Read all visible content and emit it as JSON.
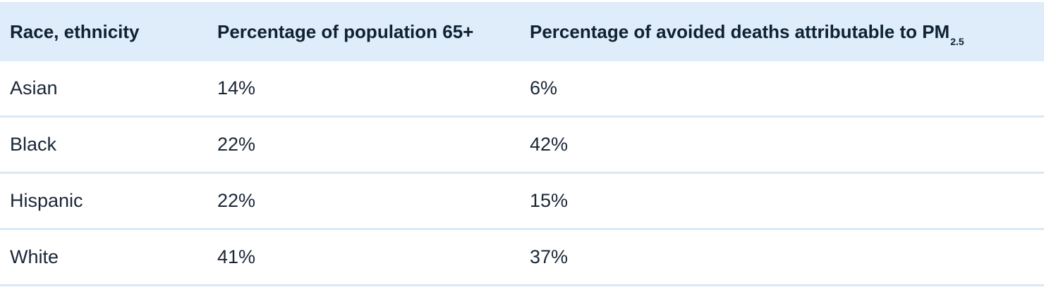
{
  "table": {
    "headers": {
      "col1": "Race, ethnicity",
      "col2": "Percentage of population 65+",
      "col3_main": "Percentage of avoided deaths attributable to PM",
      "col3_sub": "2.5"
    },
    "rows": [
      {
        "race": "Asian",
        "pop65": "14%",
        "avoided": "6%"
      },
      {
        "race": "Black",
        "pop65": "22%",
        "avoided": "42%"
      },
      {
        "race": "Hispanic",
        "pop65": "22%",
        "avoided": "15%"
      },
      {
        "race": "White",
        "pop65": "41%",
        "avoided": "37%"
      }
    ]
  },
  "colors": {
    "header_bg": "#dfecf9",
    "row_divider": "#dbe8f5",
    "text": "#1a2737"
  }
}
